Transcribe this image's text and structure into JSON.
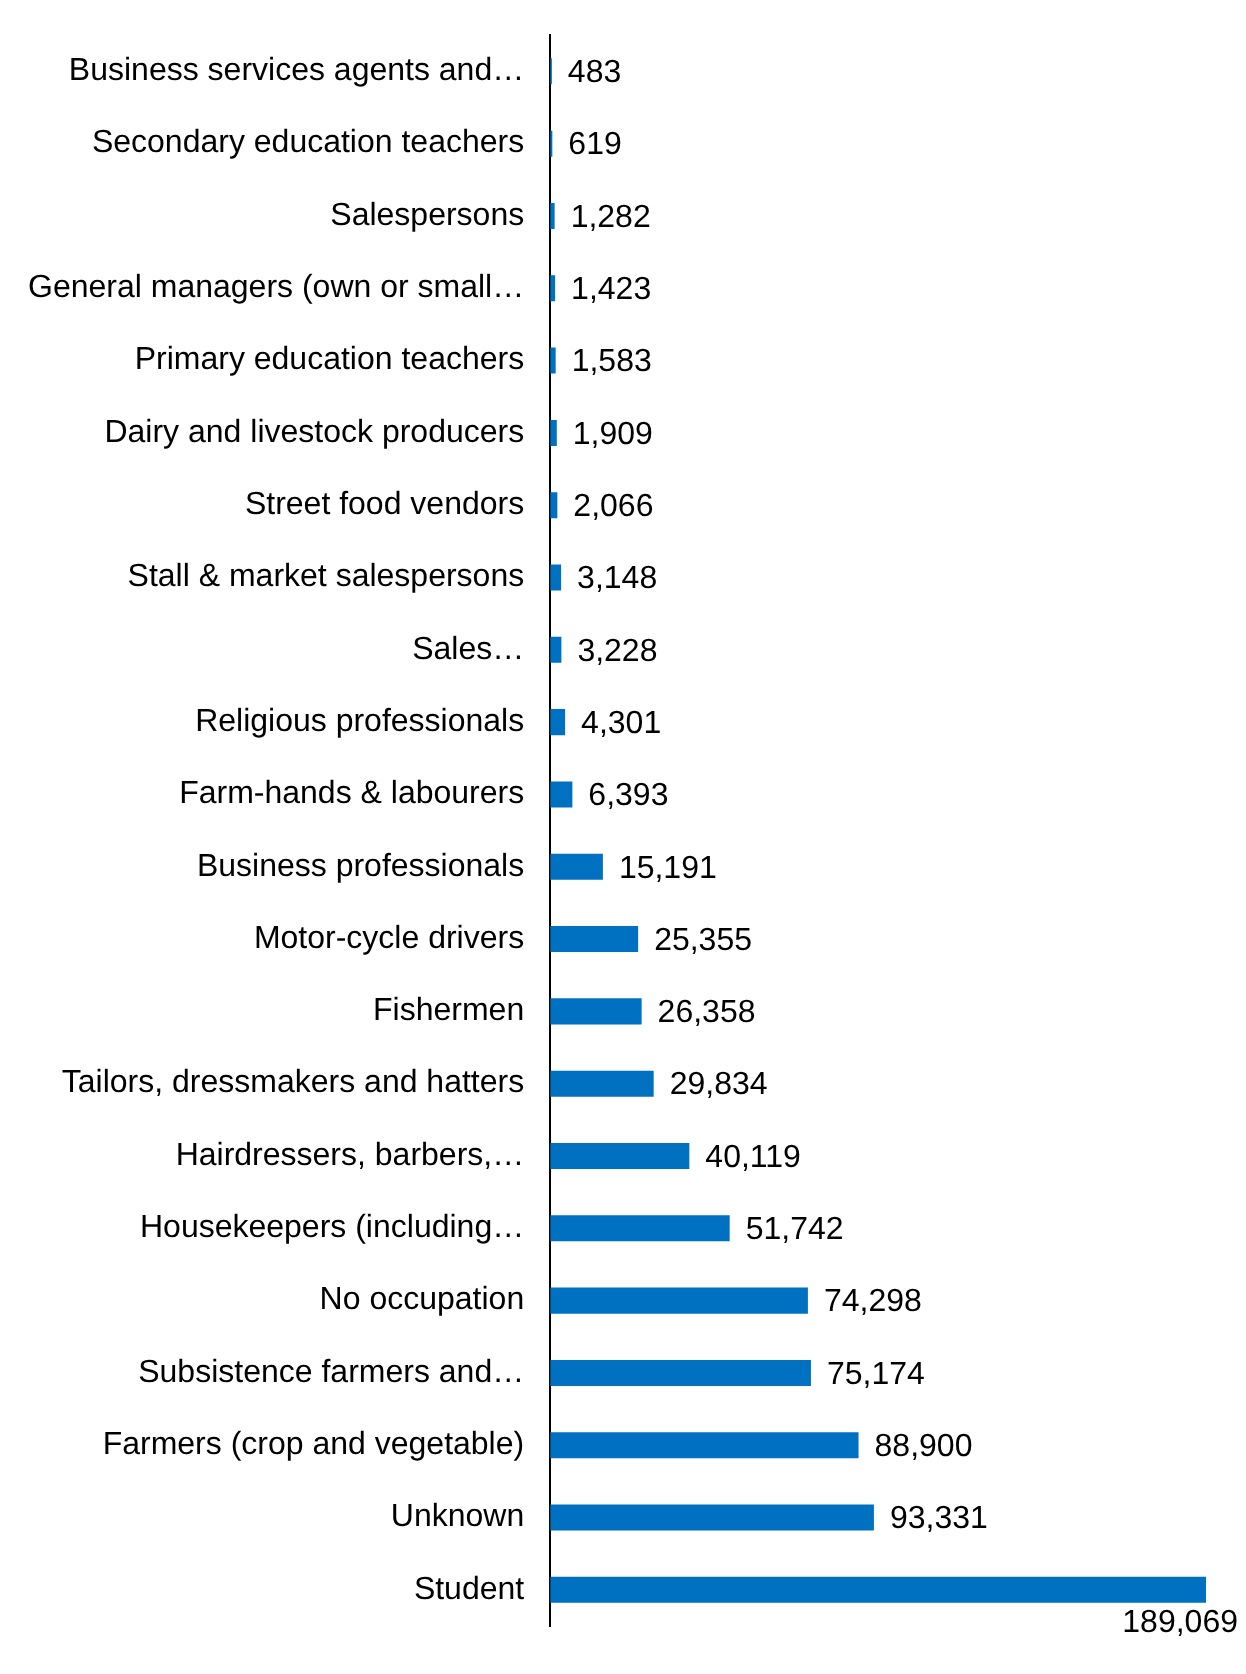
{
  "chart_data": {
    "type": "bar",
    "orientation": "horizontal",
    "color": "#0070c0",
    "categories": [
      "Business services agents and…",
      "Secondary education teachers",
      "Salespersons",
      "General managers (own or small…",
      "Primary education teachers",
      "Dairy and livestock producers",
      "Street food vendors",
      "Stall & market salespersons",
      "Sales…",
      "Religious professionals",
      "Farm-hands & labourers",
      "Business professionals",
      "Motor-cycle drivers",
      "Fishermen",
      "Tailors, dressmakers and hatters",
      "Hairdressers, barbers,…",
      "Housekeepers (including…",
      "No occupation",
      "Subsistence farmers and…",
      "Farmers (crop and vegetable)",
      "Unknown",
      "Student"
    ],
    "value_labels": [
      "483",
      "619",
      "1,282",
      "1,423",
      "1,583",
      "1,909",
      "2,066",
      "3,148",
      "3,228",
      "4,301",
      "6,393",
      "15,191",
      "25,355",
      "26,358",
      "29,834",
      "40,119",
      "51,742",
      "74,298",
      "75,174",
      "88,900",
      "93,331",
      "189,069"
    ],
    "values": [
      483,
      619,
      1282,
      1423,
      1583,
      1909,
      2066,
      3148,
      3228,
      4301,
      6393,
      15191,
      25355,
      26358,
      29834,
      40119,
      51742,
      74298,
      75174,
      88900,
      93331,
      189069
    ]
  }
}
